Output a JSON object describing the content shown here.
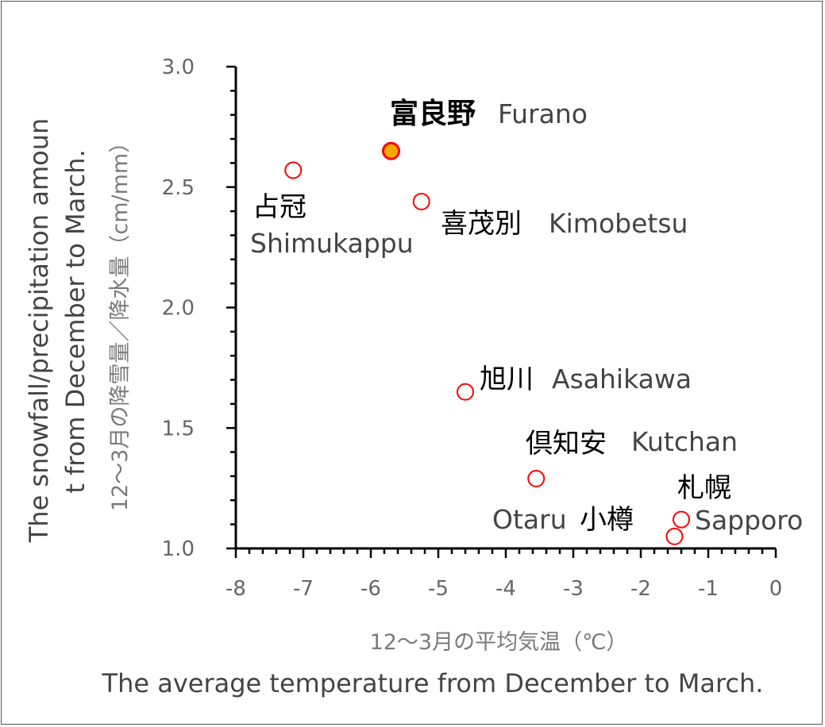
{
  "chart_data": {
    "type": "scatter",
    "xlabel_jp": "12～3月の平均気温（℃）",
    "xlabel_en": "The average temperature from December to March.",
    "ylabel_jp": "12～3月の降雪量／降水量（cm/mm）",
    "ylabel_en_line1": "The snowfall/precipitation amoun",
    "ylabel_en_line2": "t from December to March.",
    "xlim": [
      -8,
      0
    ],
    "ylim": [
      1.0,
      3.0
    ],
    "x_ticks": [
      "-8",
      "-7",
      "-6",
      "-5",
      "-4",
      "-3",
      "-2",
      "-1",
      "0"
    ],
    "y_ticks": [
      "3.0",
      "2.5",
      "2.0",
      "1.5",
      "1.0"
    ],
    "grid": false,
    "points": [
      {
        "name_jp": "富良野",
        "name_en": "Furano",
        "x": -5.7,
        "y": 2.65,
        "highlight": true
      },
      {
        "name_jp": "占冠",
        "name_en": "Shimukappu",
        "x": -7.15,
        "y": 2.57,
        "highlight": false
      },
      {
        "name_jp": "喜茂別",
        "name_en": "Kimobetsu",
        "x": -5.25,
        "y": 2.44,
        "highlight": false
      },
      {
        "name_jp": "旭川",
        "name_en": "Asahikawa",
        "x": -4.6,
        "y": 1.65,
        "highlight": false
      },
      {
        "name_jp": "倶知安",
        "name_en": "Kutchan",
        "x": -3.55,
        "y": 1.29,
        "highlight": false
      },
      {
        "name_jp": "札幌",
        "name_en": "Sapporo",
        "x": -1.4,
        "y": 1.12,
        "highlight": false
      },
      {
        "name_jp": "小樽",
        "name_en": "Otaru",
        "x": -1.5,
        "y": 1.05,
        "highlight": false
      }
    ],
    "colors": {
      "marker_stroke": "#ff0000",
      "highlight_fill": "#f5a800",
      "axis": "#000000"
    }
  }
}
